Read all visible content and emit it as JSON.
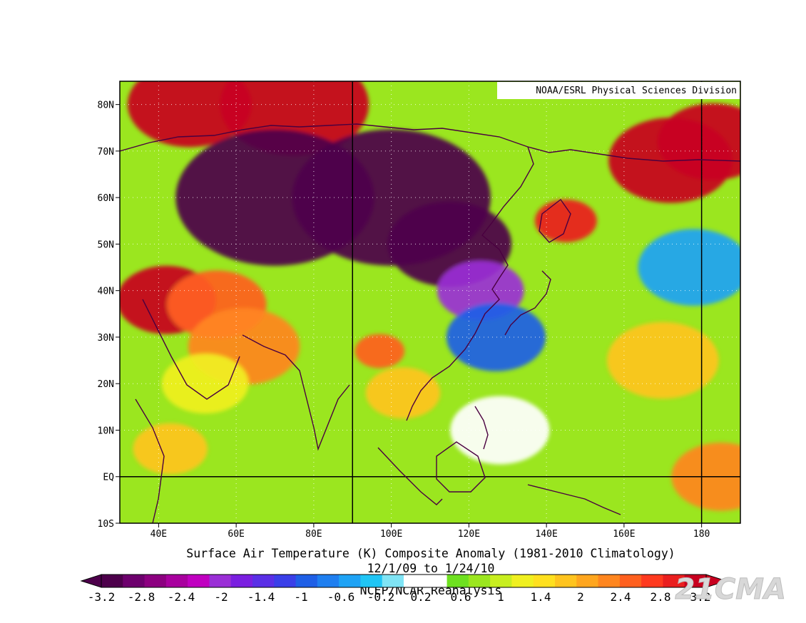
{
  "source_label": "NOAA/ESRL Physical Sciences Division",
  "title_line1": "Surface Air Temperature (K) Composite Anomaly (1981-2010 Climatology)",
  "title_line2": "12/1/09  to 1/24/10",
  "title_line3": "NCEP/NCAR Reanalysis",
  "watermark": "21CMA",
  "map": {
    "lon_range": [
      30,
      190
    ],
    "lat_range": [
      -10,
      85
    ],
    "lon_ticks": [
      {
        "lon": 40,
        "label": "40E"
      },
      {
        "lon": 60,
        "label": "60E"
      },
      {
        "lon": 80,
        "label": "80E"
      },
      {
        "lon": 100,
        "label": "100E"
      },
      {
        "lon": 120,
        "label": "120E"
      },
      {
        "lon": 140,
        "label": "140E"
      },
      {
        "lon": 160,
        "label": "160E"
      },
      {
        "lon": 180,
        "label": "180"
      }
    ],
    "lat_ticks": [
      {
        "lat": 80,
        "label": "80N"
      },
      {
        "lat": 70,
        "label": "70N"
      },
      {
        "lat": 60,
        "label": "60N"
      },
      {
        "lat": 50,
        "label": "50N"
      },
      {
        "lat": 40,
        "label": "40N"
      },
      {
        "lat": 30,
        "label": "30N"
      },
      {
        "lat": 20,
        "label": "20N"
      },
      {
        "lat": 10,
        "label": "10N"
      },
      {
        "lat": 0,
        "label": "EQ"
      },
      {
        "lat": -10,
        "label": "10S"
      }
    ],
    "reference_lines": {
      "lon": [
        90,
        180
      ],
      "lat": [
        0
      ]
    },
    "background_anomaly": 0.9,
    "anomaly_regions": [
      {
        "name": "Arctic Europe warm",
        "lon": 48,
        "lat": 80,
        "r": 10,
        "value": 3.4
      },
      {
        "name": "Arctic warm east",
        "lon": 75,
        "lat": 80,
        "r": 12,
        "value": 3.4
      },
      {
        "name": "Siberia cold",
        "lon": 70,
        "lat": 60,
        "r": 16,
        "value": -4.5
      },
      {
        "name": "Siberia cold core",
        "lon": 100,
        "lat": 60,
        "r": 16,
        "value": -4.5
      },
      {
        "name": "Mongolia cold",
        "lon": 115,
        "lat": 50,
        "r": 10,
        "value": -3.6
      },
      {
        "name": "North China cold",
        "lon": 123,
        "lat": 40,
        "r": 7,
        "value": -2.4
      },
      {
        "name": "South China cold",
        "lon": 127,
        "lat": 30,
        "r": 8,
        "value": -1.2
      },
      {
        "name": "Middle East warm",
        "lon": 42,
        "lat": 38,
        "r": 8,
        "value": 3.2
      },
      {
        "name": "Caspian warm",
        "lon": 55,
        "lat": 37,
        "r": 8,
        "value": 2.6
      },
      {
        "name": "Iran warm",
        "lon": 62,
        "lat": 28,
        "r": 9,
        "value": 2.0
      },
      {
        "name": "Tibet warm",
        "lon": 97,
        "lat": 27,
        "r": 4,
        "value": 2.6
      },
      {
        "name": "Indochina warm",
        "lon": 103,
        "lat": 18,
        "r": 6,
        "value": 1.8
      },
      {
        "name": "Okhotsk warm",
        "lon": 145,
        "lat": 55,
        "r": 5,
        "value": 3.0
      },
      {
        "name": "Bering warm",
        "lon": 172,
        "lat": 68,
        "r": 10,
        "value": 3.2
      },
      {
        "name": "Alaska warm",
        "lon": 183,
        "lat": 72,
        "r": 9,
        "value": 3.2
      },
      {
        "name": "North Pacific cool",
        "lon": 178,
        "lat": 45,
        "r": 9,
        "value": -1.0
      },
      {
        "name": "Philippine Sea neutral",
        "lon": 128,
        "lat": 10,
        "r": 8,
        "value": 0.0
      },
      {
        "name": "Central Pacific warm",
        "lon": 170,
        "lat": 25,
        "r": 9,
        "value": 1.4
      },
      {
        "name": "Equatorial East warm",
        "lon": 185,
        "lat": 0,
        "r": 8,
        "value": 2.0
      },
      {
        "name": "East Africa warm",
        "lon": 43,
        "lat": 6,
        "r": 6,
        "value": 1.6
      },
      {
        "name": "Arabian warm",
        "lon": 52,
        "lat": 20,
        "r": 7,
        "value": 1.0
      }
    ]
  },
  "colorbar": {
    "colors": [
      "#4d004b",
      "#6d006d",
      "#8c0080",
      "#a8009e",
      "#c000c0",
      "#9a2fd6",
      "#7a1fe0",
      "#5a2fe6",
      "#3a3fe8",
      "#1f5fe6",
      "#1f7ff0",
      "#1fa3f5",
      "#20c5f5",
      "#7fe4f5",
      "#ffffff",
      "#ffffff",
      "#6ee020",
      "#9be61f",
      "#c8ee1f",
      "#f0f020",
      "#ffe01f",
      "#ffc41f",
      "#ffa61f",
      "#ff861f",
      "#ff601f",
      "#ff3a1f",
      "#ea1f1f",
      "#c8001f"
    ],
    "tick_labels": [
      "-3.2",
      "-2.8",
      "-2.4",
      "-2",
      "-1.4",
      "-1",
      "-0.6",
      "-0.2",
      "0.2",
      "0.6",
      "1",
      "1.4",
      "2",
      "2.4",
      "2.8",
      "3.2"
    ],
    "levels": [
      -3.2,
      -2.8,
      -2.4,
      -2,
      -1.4,
      -1,
      -0.6,
      -0.2,
      0.2,
      0.6,
      1,
      1.4,
      2,
      2.4,
      2.8,
      3.2
    ]
  }
}
